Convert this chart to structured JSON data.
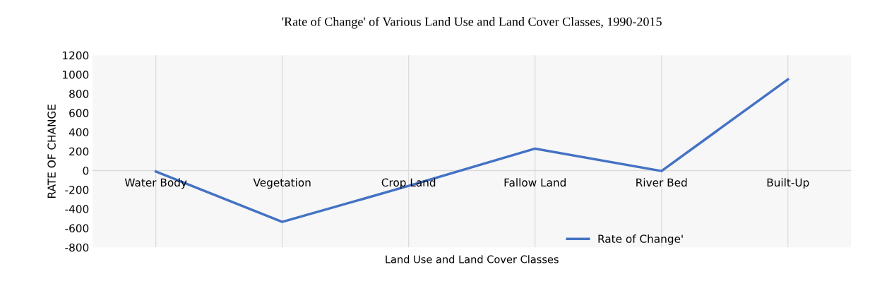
{
  "chart_data": {
    "type": "line",
    "title": "'Rate of Change' of Various Land Use and Land Cover Classes, 1990-2015",
    "xlabel": "Land Use and Land Cover Classes",
    "ylabel": "RATE OF CHANGE",
    "categories": [
      "Water Body",
      "Vegetation",
      "Crop Land",
      "Fallow Land",
      "River Bed",
      "Built-Up"
    ],
    "series": [
      {
        "name": "Rate of Change'",
        "color": "#4472c4",
        "values": [
          -10,
          -535,
          -160,
          228,
          -5,
          949
        ]
      }
    ],
    "ylim": [
      -800,
      1200
    ],
    "yticks": [
      -800,
      -600,
      -400,
      -200,
      0,
      200,
      400,
      600,
      800,
      1000,
      1200
    ],
    "grid": "x",
    "legend": "bottom right",
    "marker": "none",
    "line_style": "solid"
  }
}
